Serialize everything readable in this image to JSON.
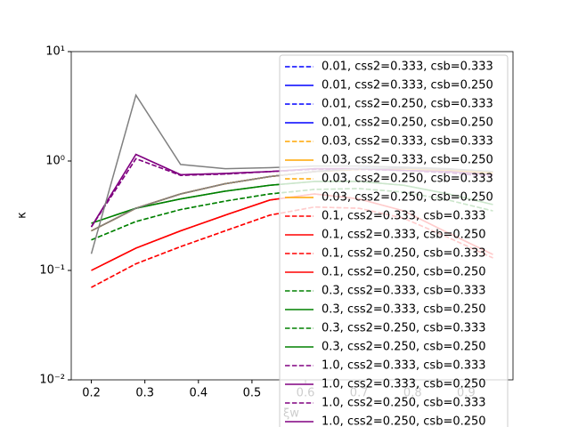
{
  "chart_data": {
    "type": "line",
    "x_label": "ξw",
    "y_label": "κ",
    "x": [
      0.2,
      0.2833,
      0.3667,
      0.45,
      0.5333,
      0.6167,
      0.7,
      0.7833,
      0.8667,
      0.95
    ],
    "xlim": [
      0.1625,
      0.9875
    ],
    "xticks": [
      0.2,
      0.3,
      0.4,
      0.5,
      0.6,
      0.7,
      0.8,
      0.9
    ],
    "ylim": [
      0.01,
      10
    ],
    "log_y": true,
    "yticks": [
      {
        "value": 0.01,
        "label": "10⁻²"
      },
      {
        "value": 0.1,
        "label": "10⁻¹"
      },
      {
        "value": 1,
        "label": "10⁰"
      },
      {
        "value": 10,
        "label": "10¹"
      }
    ],
    "legend": "upper right",
    "series": [
      {
        "name": "0.01, css2=0.333, csb=0.333",
        "color": "#0000ff",
        "linestyle": "--",
        "values": [
          0.23,
          0.37,
          0.5,
          0.62,
          0.72,
          0.8,
          0.85,
          0.86,
          0.84,
          0.8
        ]
      },
      {
        "name": "0.01, css2=0.333, csb=0.250",
        "color": "#0000ff",
        "linestyle": "-",
        "values": [
          0.23,
          0.37,
          0.5,
          0.62,
          0.72,
          0.8,
          0.85,
          0.86,
          0.84,
          0.8
        ]
      },
      {
        "name": "0.01, css2=0.250, csb=0.333",
        "color": "#0000ff",
        "linestyle": "--",
        "values": [
          0.23,
          0.37,
          0.5,
          0.62,
          0.72,
          0.8,
          0.85,
          0.86,
          0.84,
          0.8
        ]
      },
      {
        "name": "0.01, css2=0.250, csb=0.250",
        "color": "#0000ff",
        "linestyle": "-",
        "values": [
          0.23,
          0.37,
          0.5,
          0.62,
          0.72,
          0.8,
          0.85,
          0.86,
          0.84,
          0.8
        ]
      },
      {
        "name": "0.03, css2=0.333, csb=0.333",
        "color": "#ffa500",
        "linestyle": "--",
        "values": [
          0.23,
          0.37,
          0.5,
          0.62,
          0.72,
          0.8,
          0.84,
          0.85,
          0.82,
          0.78
        ]
      },
      {
        "name": "0.03, css2=0.333, csb=0.250",
        "color": "#ffa500",
        "linestyle": "-",
        "values": [
          0.23,
          0.37,
          0.5,
          0.62,
          0.72,
          0.8,
          0.84,
          0.85,
          0.82,
          0.78
        ]
      },
      {
        "name": "0.03, css2=0.250, csb=0.333",
        "color": "#ffa500",
        "linestyle": "--",
        "values": [
          0.23,
          0.37,
          0.5,
          0.62,
          0.72,
          0.8,
          0.84,
          0.85,
          0.82,
          0.78
        ]
      },
      {
        "name": "0.03, css2=0.250, csb=0.250",
        "color": "#ffa500",
        "linestyle": "-",
        "values": [
          0.23,
          0.37,
          0.5,
          0.62,
          0.72,
          0.8,
          0.84,
          0.85,
          0.82,
          0.78
        ]
      },
      {
        "name": "0.1, css2=0.333, csb=0.333",
        "color": "#ff0000",
        "linestyle": "--",
        "values": [
          0.07,
          0.115,
          0.165,
          0.23,
          0.32,
          0.38,
          0.37,
          0.3,
          0.2,
          0.13
        ]
      },
      {
        "name": "0.1, css2=0.333, csb=0.250",
        "color": "#ff0000",
        "linestyle": "-",
        "values": [
          0.1,
          0.16,
          0.23,
          0.32,
          0.44,
          0.5,
          0.45,
          0.35,
          0.22,
          0.14
        ]
      },
      {
        "name": "0.1, css2=0.250, csb=0.333",
        "color": "#ff0000",
        "linestyle": "--",
        "values": [
          0.07,
          0.115,
          0.165,
          0.23,
          0.32,
          0.38,
          0.37,
          0.3,
          0.2,
          0.13
        ]
      },
      {
        "name": "0.1, css2=0.250, csb=0.250",
        "color": "#ff0000",
        "linestyle": "-",
        "values": [
          0.1,
          0.16,
          0.23,
          0.32,
          0.44,
          0.5,
          0.45,
          0.35,
          0.22,
          0.14
        ]
      },
      {
        "name": "0.3, css2=0.333, csb=0.333",
        "color": "#008000",
        "linestyle": "--",
        "values": [
          0.19,
          0.28,
          0.36,
          0.43,
          0.5,
          0.55,
          0.56,
          0.52,
          0.44,
          0.35
        ]
      },
      {
        "name": "0.3, css2=0.333, csb=0.250",
        "color": "#008000",
        "linestyle": "-",
        "values": [
          0.27,
          0.37,
          0.45,
          0.53,
          0.6,
          0.65,
          0.65,
          0.6,
          0.5,
          0.4
        ]
      },
      {
        "name": "0.3, css2=0.250, csb=0.333",
        "color": "#008000",
        "linestyle": "--",
        "values": [
          0.19,
          0.28,
          0.36,
          0.43,
          0.5,
          0.55,
          0.56,
          0.52,
          0.44,
          0.35
        ]
      },
      {
        "name": "0.3, css2=0.250, csb=0.250",
        "color": "#008000",
        "linestyle": "-",
        "values": [
          0.27,
          0.37,
          0.45,
          0.53,
          0.6,
          0.65,
          0.65,
          0.6,
          0.5,
          0.4
        ]
      },
      {
        "name": "1.0, css2=0.333, csb=0.333",
        "color": "#800080",
        "linestyle": "--",
        "values": [
          0.25,
          1.05,
          0.74,
          0.76,
          0.8,
          0.84,
          0.84,
          0.82,
          0.78,
          0.72
        ]
      },
      {
        "name": "1.0, css2=0.333, csb=0.250",
        "color": "#800080",
        "linestyle": "-",
        "values": [
          0.25,
          1.15,
          0.75,
          0.77,
          0.8,
          0.85,
          0.85,
          0.82,
          0.8,
          0.75
        ]
      },
      {
        "name": "1.0, css2=0.250, csb=0.333",
        "color": "#800080",
        "linestyle": "--",
        "values": [
          0.25,
          1.05,
          0.74,
          0.76,
          0.8,
          0.84,
          0.84,
          0.82,
          0.78,
          0.72
        ]
      },
      {
        "name": "1.0, css2=0.250, csb=0.250",
        "color": "#800080",
        "linestyle": "-",
        "values": [
          0.25,
          1.15,
          0.75,
          0.77,
          0.8,
          0.85,
          0.85,
          0.82,
          0.8,
          0.75
        ]
      },
      {
        "color": "#808080",
        "linestyle": "-",
        "values": [
          0.23,
          0.37,
          0.5,
          0.62,
          0.72,
          0.8,
          0.85,
          0.86,
          0.84,
          0.8
        ]
      },
      {
        "color": "#808080",
        "linestyle": "-",
        "values": [
          0.142,
          4.0,
          0.93,
          0.85,
          0.87,
          0.9,
          0.9,
          0.88,
          0.85,
          0.8
        ]
      }
    ]
  }
}
